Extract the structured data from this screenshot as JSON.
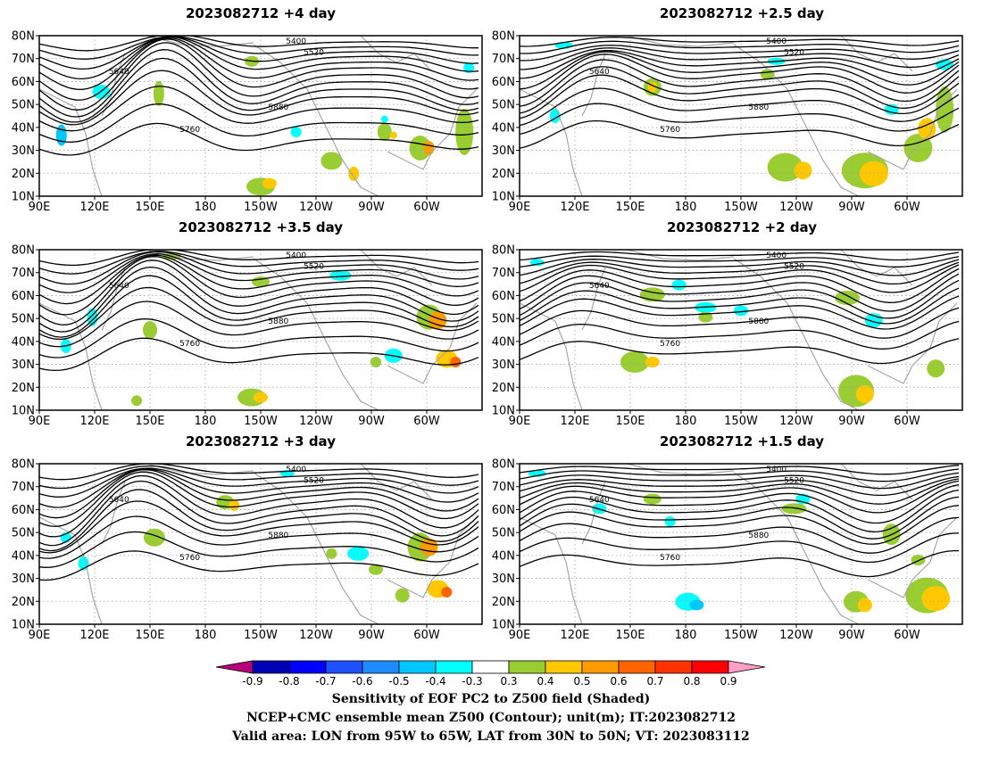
{
  "panels": [
    {
      "title": "2023082712  +4 day"
    },
    {
      "title": "2023082712  +2.5 day"
    },
    {
      "title": "2023082712  +3.5 day"
    },
    {
      "title": "2023082712  +2 day"
    },
    {
      "title": "2023082712  +3 day"
    },
    {
      "title": "2023082712  +1.5 day"
    }
  ],
  "axes": {
    "lat_ticks": [
      "80N",
      "70N",
      "60N",
      "50N",
      "40N",
      "30N",
      "20N",
      "10N"
    ],
    "lon_ticks": [
      "90E",
      "120E",
      "150E",
      "180",
      "150W",
      "120W",
      "90W",
      "60W"
    ]
  },
  "contour_levels": [
    "5400",
    "5520",
    "5640",
    "5760",
    "5880"
  ],
  "colorbar": {
    "labels": [
      "-0.9",
      "-0.8",
      "-0.7",
      "-0.6",
      "-0.5",
      "-0.4",
      "-0.3",
      "0.3",
      "0.4",
      "0.5",
      "0.6",
      "0.7",
      "0.8",
      "0.9"
    ],
    "colors": [
      "#b8007a",
      "#0000b4",
      "#0000ff",
      "#1e50ff",
      "#1e8cff",
      "#00c8ff",
      "#00ffff",
      "#ffffff",
      "#9acd32",
      "#ffc800",
      "#ff9b00",
      "#ff6400",
      "#ff3200",
      "#ff0000",
      "#ffa0c8"
    ]
  },
  "caption": {
    "line1": "Sensitivity of EOF PC2 to Z500 field (Shaded)",
    "line2": "NCEP+CMC ensemble mean Z500 (Contour); unit(m); IT:2023082712",
    "line3": "Valid area: LON from 95W to 65W, LAT from 30N to 50N; VT: 2023083112"
  }
}
